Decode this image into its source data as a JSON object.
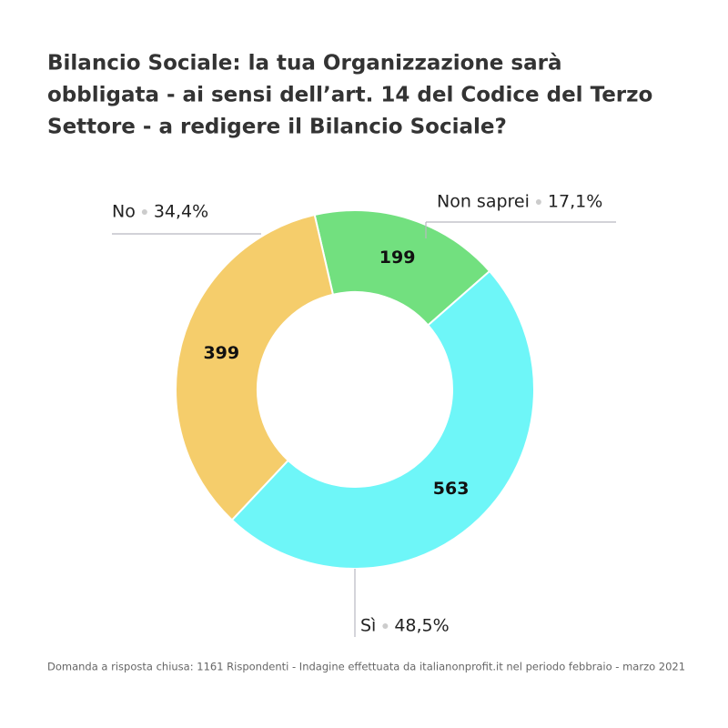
{
  "chart_data": {
    "type": "donut",
    "title": [
      "Bilancio Sociale: la tua Organizzazione sarà",
      "obbligata - ai sensi dell’art. 14 del Codice del Terzo",
      "Settore - a redigere il Bilancio Sociale?"
    ],
    "categories": [
      "Non saprei",
      "Sì",
      "No"
    ],
    "values": [
      199,
      563,
      399
    ],
    "percent_labels": [
      "17,1%",
      "48,5%",
      "34,4%"
    ],
    "colors": [
      "#72e07f",
      "#6ef6f8",
      "#f5cd6b"
    ],
    "footnote": "Domanda a risposta chiusa: 1161 Rispondenti - Indagine effettuata da italianonprofit.it nel periodo febbraio - marzo 2021"
  }
}
